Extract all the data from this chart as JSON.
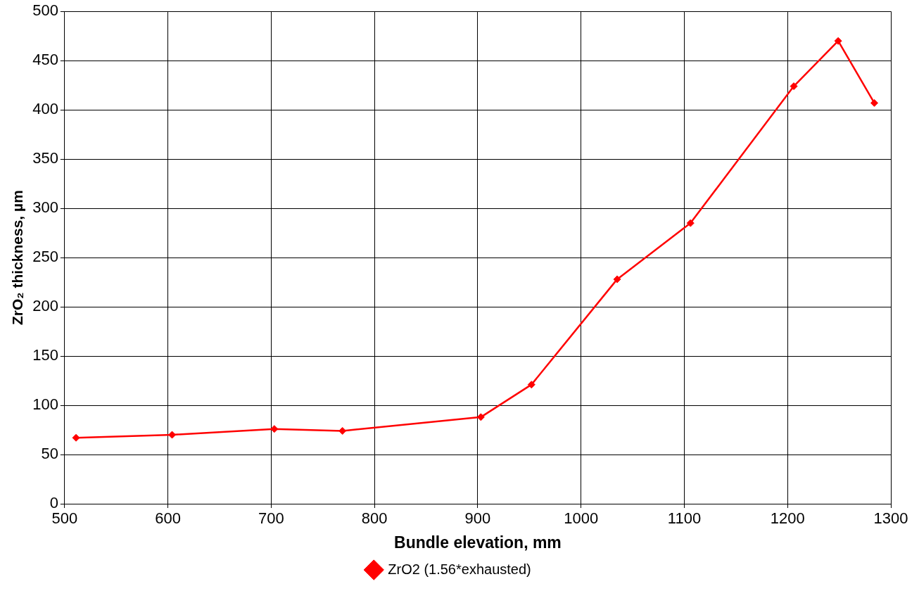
{
  "chart_data": {
    "type": "line",
    "xlabel": "Bundle elevation, mm",
    "ylabel": "ZrO₂ thickness, µm",
    "x": [
      511,
      604,
      703,
      769,
      903,
      952,
      1035,
      1106,
      1206,
      1249,
      1284
    ],
    "series": [
      {
        "name": "ZrO2 (1.56*exhausted)",
        "color": "#ff0000",
        "values": [
          67,
          70,
          76,
          74,
          88,
          121,
          228,
          285,
          424,
          470,
          407
        ]
      }
    ],
    "xlim": [
      500,
      1300
    ],
    "xticks": [
      500,
      600,
      700,
      800,
      900,
      1000,
      1100,
      1200,
      1300
    ],
    "ylim": [
      0,
      500
    ],
    "yticks": [
      0,
      50,
      100,
      150,
      200,
      250,
      300,
      350,
      400,
      450,
      500
    ],
    "grid": true,
    "legend": "bottom",
    "marker": "diamond",
    "line_style": "solid"
  }
}
